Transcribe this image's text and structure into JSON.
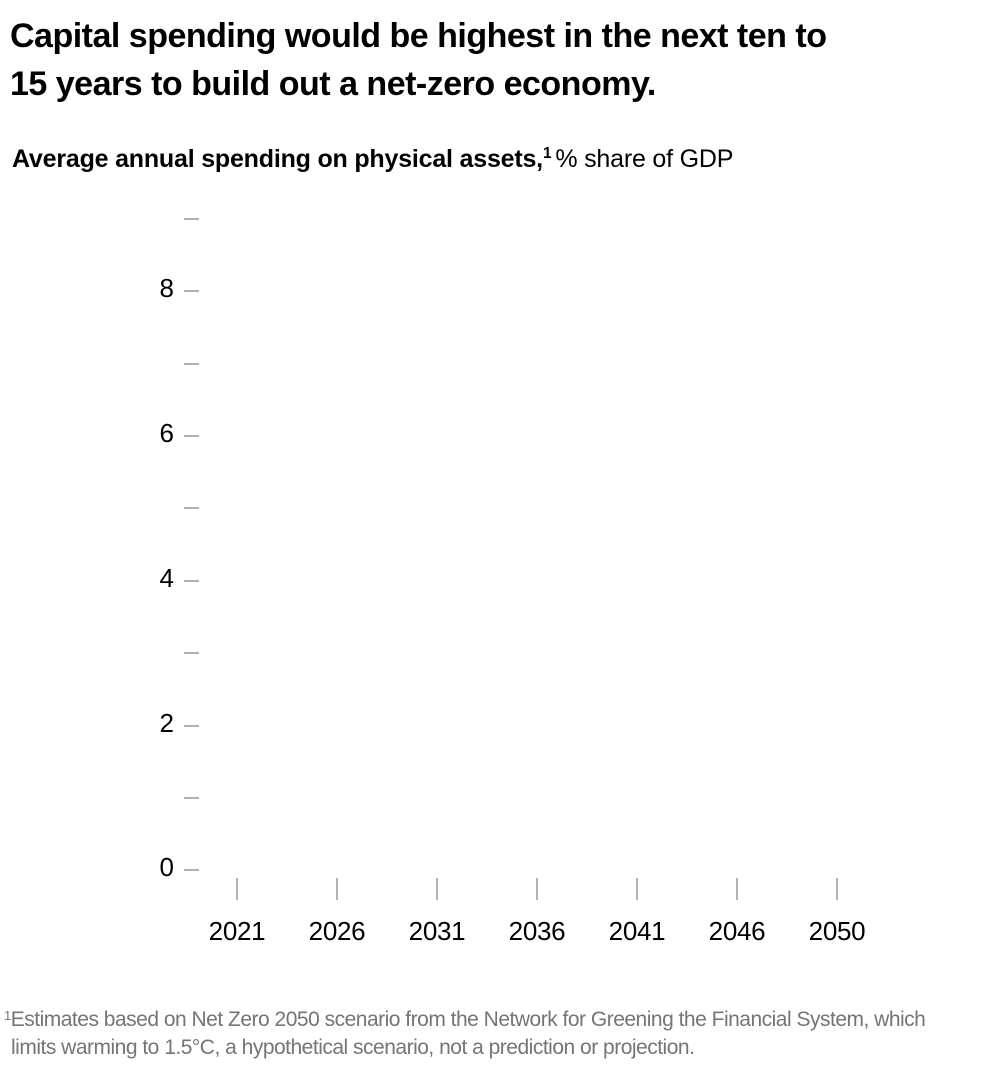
{
  "title": {
    "line1": "Capital spending would be highest in the next ten to",
    "line2": "15 years to build out a net-zero economy."
  },
  "subtitle": {
    "bold": "Average annual spending on physical assets,",
    "sup": "1",
    "regular": "% share of GDP"
  },
  "footnote": {
    "sup": "1",
    "line1": "Estimates based on Net Zero 2050 scenario from the Network for Greening the Financial System, which",
    "line2": "limits warming to 1.5°C, a hypothetical scenario, not a prediction or projection."
  },
  "colors": {
    "text": "#000000",
    "tick_gray": "#b0b0b0",
    "footnote_gray": "#757575",
    "background": "#ffffff"
  },
  "chart_data": {
    "type": "line",
    "title": "Capital spending would be highest in the next ten to 15 years to build out a net-zero economy.",
    "subtitle": "Average annual spending on physical assets,¹ % share of GDP",
    "xlabel": "",
    "ylabel": "% share of GDP",
    "x_tick_labels": [
      "2021",
      "2026",
      "2031",
      "2036",
      "2041",
      "2046",
      "2050"
    ],
    "y_axis": {
      "min": 0,
      "max": 9,
      "minor_step": 1,
      "labeled_ticks": [
        0,
        2,
        4,
        6,
        8
      ]
    },
    "grid": false,
    "legend": "none",
    "series": []
  }
}
